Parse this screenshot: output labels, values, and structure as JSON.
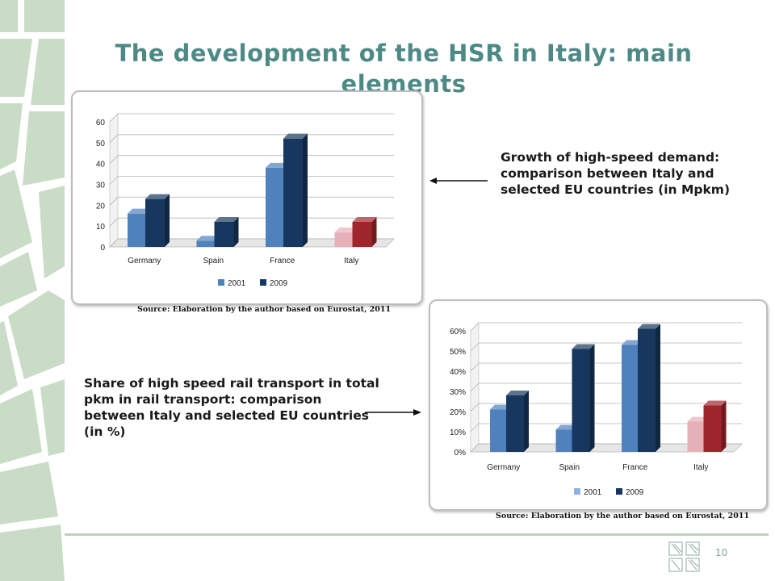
{
  "slide": {
    "title": "The development of the HSR in Italy: main elements",
    "page_number": "10"
  },
  "captions": {
    "top": "Growth of high-speed demand: comparison between Italy and selected EU countries (in Mpkm)",
    "bottom": "Share of high speed rail transport in total pkm in rail transport: comparison between Italy and selected EU countries (in %)"
  },
  "colors": {
    "title": "#4d8a86",
    "series_2001": "#4f81bd",
    "series_2009": "#17375e",
    "italy_2001": "#e6b0b8",
    "italy_2009": "#a0262e",
    "pattern": "#c9dcc6"
  },
  "chart_data": [
    {
      "type": "bar",
      "categories": [
        "Germany",
        "Spain",
        "France",
        "Italy"
      ],
      "series": [
        {
          "name": "2001",
          "values": [
            16,
            3,
            38,
            7
          ]
        },
        {
          "name": "2009",
          "values": [
            23,
            12,
            52,
            12
          ]
        }
      ],
      "ylim": [
        0,
        60
      ],
      "yticks": [
        0,
        10,
        20,
        30,
        40,
        50,
        60
      ],
      "ytick_labels": [
        "0",
        "10",
        "20",
        "30",
        "40",
        "50",
        "60"
      ],
      "grid": true,
      "legend": "bottom",
      "source": "Source: Elaboration by the author based on Eurostat, 2011"
    },
    {
      "type": "bar",
      "categories": [
        "Germany",
        "Spain",
        "France",
        "Italy"
      ],
      "series": [
        {
          "name": "2001",
          "values": [
            21,
            11,
            53,
            15
          ]
        },
        {
          "name": "2009",
          "values": [
            28,
            51,
            61,
            23
          ]
        }
      ],
      "ylim": [
        0,
        60
      ],
      "yticks": [
        0,
        10,
        20,
        30,
        40,
        50,
        60
      ],
      "ytick_labels": [
        "0%",
        "10%",
        "20%",
        "30%",
        "40%",
        "50%",
        "60%"
      ],
      "grid": true,
      "legend": "bottom",
      "source": "Source: Elaboration by the author based on Eurostat, 2011"
    }
  ]
}
